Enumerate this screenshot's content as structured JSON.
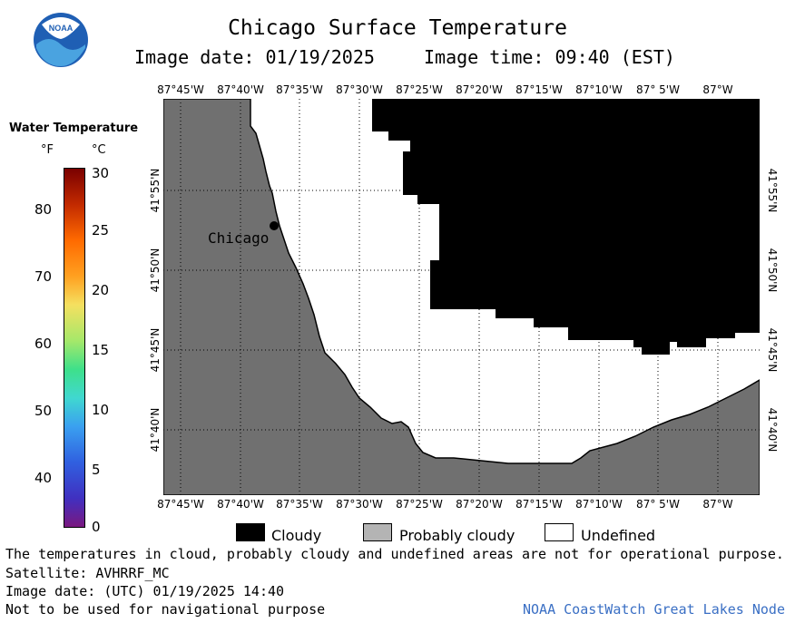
{
  "header": {
    "title": "Chicago Surface Temperature",
    "image_date": "Image date: 01/19/2025",
    "image_time": "Image time: 09:40 (EST)"
  },
  "logo": {
    "text": "NOAA",
    "colors": {
      "outer": "#1f5fb4",
      "wave": "#4aa3e0",
      "inner": "#ffffff"
    }
  },
  "map": {
    "lon_labels": [
      "87°45'W",
      "87°40'W",
      "87°35'W",
      "87°30'W",
      "87°25'W",
      "87°20'W",
      "87°15'W",
      "87°10'W",
      "87° 5'W",
      "87°W"
    ],
    "lat_labels": [
      "41°55'N",
      "41°50'N",
      "41°45'N",
      "41°40'N"
    ],
    "city_label": "Chicago",
    "colors": {
      "land": "#707070",
      "cloudy": "#000000",
      "undefined": "#ffffff",
      "probably_cloudy": "#b4b4b4"
    }
  },
  "scale": {
    "title": "Water Temperature",
    "unit_f": "°F",
    "unit_c": "°C",
    "f_ticks": [
      "80",
      "70",
      "60",
      "50",
      "40"
    ],
    "c_ticks": [
      "30",
      "25",
      "20",
      "15",
      "10",
      "5",
      "0"
    ]
  },
  "legend": [
    {
      "label": "Cloudy",
      "color": "#000000"
    },
    {
      "label": "Probably cloudy",
      "color": "#b4b4b4"
    },
    {
      "label": "Undefined",
      "color": "#ffffff"
    }
  ],
  "footer": {
    "disclaimer": "The temperatures in cloud, probably cloudy and undefined areas are not for operational purpose.",
    "satellite": "Satellite: AVHRRF_MC",
    "utc_date": "Image date: (UTC) 01/19/2025  14:40",
    "nav_warning": "Not to be used for navigational purpose",
    "credit": "NOAA CoastWatch Great Lakes Node"
  }
}
